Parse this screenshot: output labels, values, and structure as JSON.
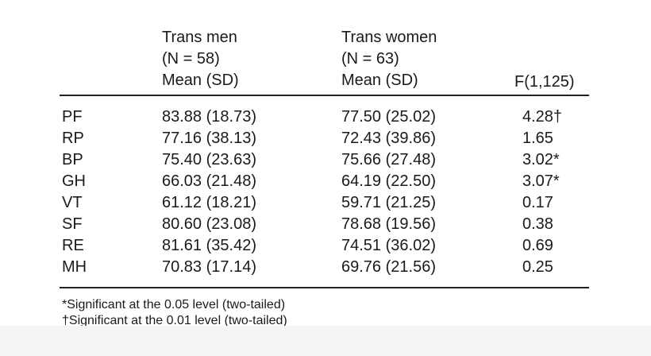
{
  "header": {
    "col1": [
      "Trans men",
      "(N = 58)",
      "Mean (SD)"
    ],
    "col2": [
      "Trans women",
      "(N = 63)",
      "Mean (SD)"
    ],
    "col3": "F(1,125)"
  },
  "rows": [
    {
      "label": "PF",
      "men": "83.88 (18.73)",
      "women": "77.50 (25.02)",
      "f": "4.28†"
    },
    {
      "label": "RP",
      "men": "77.16 (38.13)",
      "women": "72.43 (39.86)",
      "f": "1.65"
    },
    {
      "label": "BP",
      "men": "75.40 (23.63)",
      "women": "75.66 (27.48)",
      "f": "3.02*"
    },
    {
      "label": "GH",
      "men": "66.03 (21.48)",
      "women": "64.19 (22.50)",
      "f": "3.07*"
    },
    {
      "label": "VT",
      "men": "61.12 (18.21)",
      "women": "59.71 (21.25)",
      "f": "0.17"
    },
    {
      "label": "SF",
      "men": "80.60 (23.08)",
      "women": "78.68 (19.56)",
      "f": "0.38"
    },
    {
      "label": "RE",
      "men": "81.61 (35.42)",
      "women": "74.51 (36.02)",
      "f": "0.69"
    },
    {
      "label": "MH",
      "men": "70.83 (17.14)",
      "women": "69.76 (21.56)",
      "f": "0.25"
    }
  ],
  "footnotes": [
    "*Significant at the 0.05 level (two-tailed)",
    "†Significant at the 0.01 level (two-tailed)"
  ]
}
